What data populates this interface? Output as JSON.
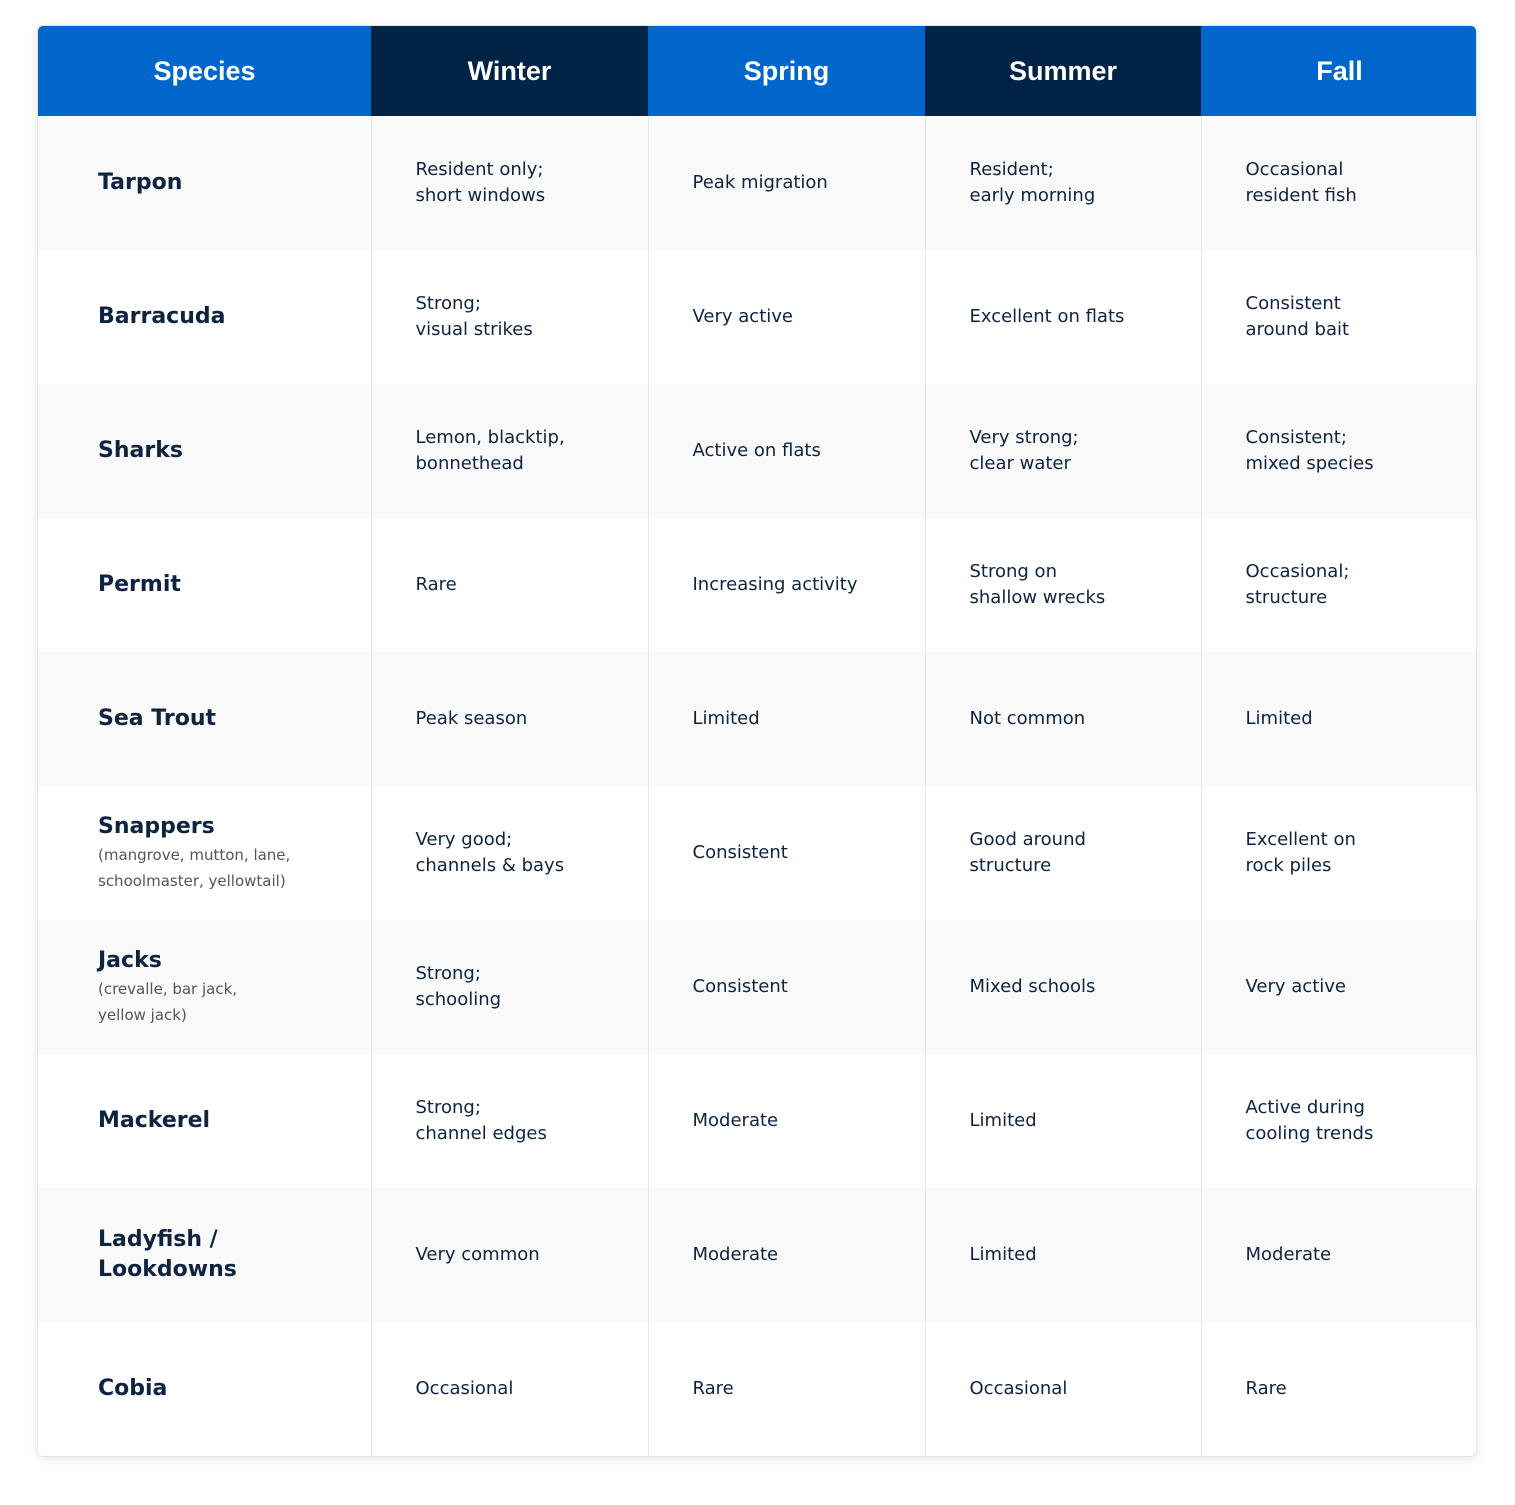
{
  "colors": {
    "header_blue": "#0066cc",
    "header_dark": "#012446",
    "text": "#0d2340"
  },
  "headers": [
    "Species",
    "Winter",
    "Spring",
    "Summer",
    "Fall"
  ],
  "rows": [
    {
      "species": "Tarpon",
      "note": "",
      "cells": [
        "Resident only;\nshort windows",
        "Peak migration",
        "Resident;\nearly morning",
        "Occasional\nresident fish"
      ]
    },
    {
      "species": "Barracuda",
      "note": "",
      "cells": [
        "Strong;\nvisual strikes",
        "Very active",
        "Excellent on flats",
        "Consistent\naround bait"
      ]
    },
    {
      "species": "Sharks",
      "note": "",
      "cells": [
        "Lemon, blacktip,\nbonnethead",
        "Active on flats",
        "Very strong;\nclear water",
        "Consistent;\nmixed species"
      ]
    },
    {
      "species": "Permit",
      "note": "",
      "cells": [
        "Rare",
        "Increasing activity",
        "Strong on\nshallow wrecks",
        "Occasional;\nstructure"
      ]
    },
    {
      "species": "Sea Trout",
      "note": "",
      "cells": [
        "Peak season",
        "Limited",
        "Not common",
        "Limited"
      ]
    },
    {
      "species": "Snappers",
      "note": "(mangrove, mutton, lane,\nschoolmaster, yellowtail)",
      "cells": [
        "Very good;\nchannels & bays",
        "Consistent",
        "Good around\nstructure",
        "Excellent on\nrock piles"
      ]
    },
    {
      "species": "Jacks",
      "note": "(crevalle, bar jack,\nyellow jack)",
      "cells": [
        "Strong;\nschooling",
        "Consistent",
        "Mixed schools",
        "Very active"
      ]
    },
    {
      "species": "Mackerel",
      "note": "",
      "cells": [
        "Strong;\nchannel edges",
        "Moderate",
        "Limited",
        "Active during\ncooling trends"
      ]
    },
    {
      "species": "Ladyfish /\nLookdowns",
      "note": "",
      "cells": [
        "Very common",
        "Moderate",
        "Limited",
        "Moderate"
      ]
    },
    {
      "species": "Cobia",
      "note": "",
      "cells": [
        "Occasional",
        "Rare",
        "Occasional",
        "Rare"
      ]
    }
  ]
}
